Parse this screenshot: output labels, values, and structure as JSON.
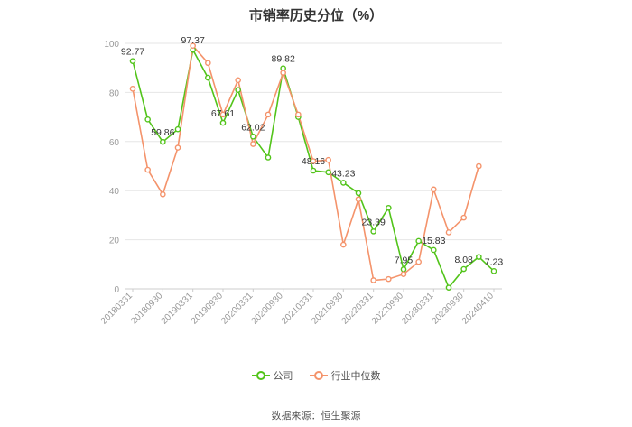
{
  "page_title": "市销率历史分位（%）",
  "source": "数据来源：恒生聚源",
  "chart_data": {
    "type": "line",
    "ylim": [
      0,
      100
    ],
    "yticks": [
      0,
      20,
      40,
      60,
      80,
      100
    ],
    "grid": true,
    "legend_placement": "bottom",
    "x_labels": [
      "20180331",
      "20180930",
      "20190331",
      "20190930",
      "20200331",
      "20200930",
      "20210331",
      "20210930",
      "20220331",
      "20220930",
      "20230331",
      "20230930",
      "20240410"
    ],
    "series": [
      {
        "name": "公司",
        "color": "#52c41a",
        "values": [
          92.77,
          69,
          59.86,
          65,
          97.37,
          86,
          67.61,
          81,
          62.02,
          53.5,
          89.82,
          70,
          48.16,
          47.5,
          43.23,
          39,
          23.39,
          33,
          7.95,
          19.5,
          15.83,
          0.5,
          8.08,
          13,
          7.23
        ],
        "labels": {
          "0": "92.77",
          "2": "59.86",
          "4": "97.37",
          "6": "67.61",
          "8": "62.02",
          "10": "89.82",
          "12": "48.16",
          "14": "43.23",
          "16": "23.39",
          "18": "7.95",
          "20": "15.83",
          "22": "8.08",
          "24": "7.23"
        }
      },
      {
        "name": "行业中位数",
        "color": "#f4936b",
        "values": [
          81.5,
          48.5,
          38.5,
          57.5,
          99,
          92,
          71,
          85,
          59,
          71,
          88,
          71,
          52,
          52.5,
          18,
          36.5,
          3.5,
          4,
          6,
          11,
          40.5,
          23,
          29,
          50,
          null
        ]
      }
    ]
  }
}
